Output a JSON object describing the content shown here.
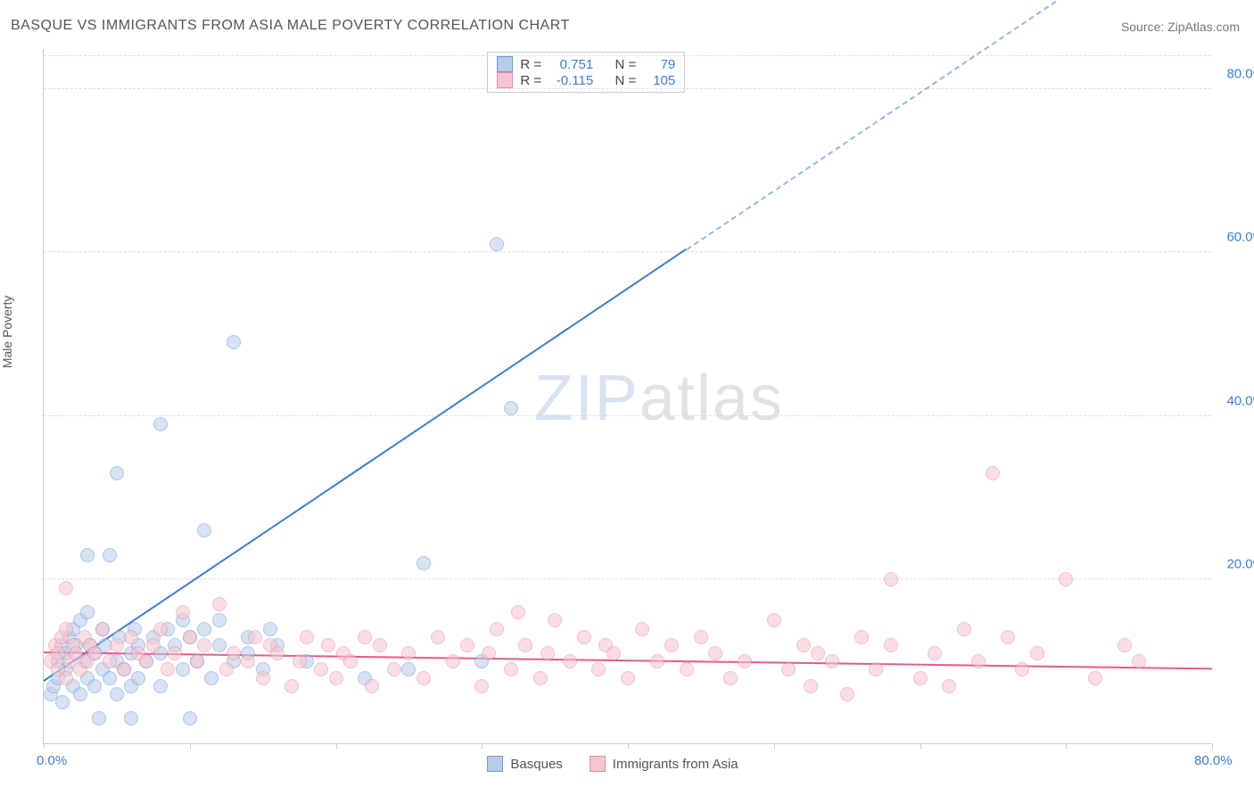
{
  "title": "BASQUE VS IMMIGRANTS FROM ASIA MALE POVERTY CORRELATION CHART",
  "source": "Source: ZipAtlas.com",
  "ylabel": "Male Poverty",
  "watermark": {
    "zip": "ZIP",
    "atlas": "atlas"
  },
  "chart": {
    "type": "scatter",
    "xlim": [
      0,
      80
    ],
    "ylim": [
      0,
      85
    ],
    "xticks": [
      0,
      10,
      20,
      30,
      40,
      50,
      60,
      70,
      80
    ],
    "xticklabels": {
      "0": "0.0%",
      "80": "80.0%"
    },
    "yticks": [
      20,
      40,
      60,
      80
    ],
    "grid_color": "#dddddd",
    "background": "#ffffff",
    "axis_color": "#cccccc",
    "tick_label_color": "#3b7dd8",
    "tick_fontsize": 15,
    "point_radius": 8,
    "point_opacity": 0.55,
    "series": [
      {
        "name": "Basques",
        "fill": "#b8cce8",
        "stroke": "#6a9bd8",
        "R": "0.751",
        "N": "79",
        "trend": {
          "slope": 1.2,
          "intercept": 7.5,
          "color": "#3b7dd8",
          "solid_until_x": 44,
          "width": 2
        },
        "points": [
          [
            0.5,
            6
          ],
          [
            0.7,
            7
          ],
          [
            1,
            8
          ],
          [
            1,
            10
          ],
          [
            1.2,
            12
          ],
          [
            1.3,
            5
          ],
          [
            1.5,
            9
          ],
          [
            1.5,
            11
          ],
          [
            1.8,
            13
          ],
          [
            2,
            7
          ],
          [
            2,
            14
          ],
          [
            2.2,
            12
          ],
          [
            2.5,
            6
          ],
          [
            2.5,
            15
          ],
          [
            2.8,
            10
          ],
          [
            3,
            8
          ],
          [
            3,
            16
          ],
          [
            3,
            23
          ],
          [
            3.2,
            12
          ],
          [
            3.5,
            7
          ],
          [
            3.5,
            11
          ],
          [
            3.8,
            3
          ],
          [
            4,
            9
          ],
          [
            4,
            14
          ],
          [
            4.2,
            12
          ],
          [
            4.5,
            23
          ],
          [
            4.5,
            8
          ],
          [
            5,
            10
          ],
          [
            5,
            6
          ],
          [
            5,
            33
          ],
          [
            5.2,
            13
          ],
          [
            5.5,
            9
          ],
          [
            6,
            7
          ],
          [
            6,
            11
          ],
          [
            6,
            3
          ],
          [
            6.2,
            14
          ],
          [
            6.5,
            8
          ],
          [
            6.5,
            12
          ],
          [
            7,
            10
          ],
          [
            7.5,
            13
          ],
          [
            8,
            11
          ],
          [
            8,
            7
          ],
          [
            8,
            39
          ],
          [
            8.5,
            14
          ],
          [
            9,
            12
          ],
          [
            9.5,
            9
          ],
          [
            9.5,
            15
          ],
          [
            10,
            13
          ],
          [
            10,
            3
          ],
          [
            10.5,
            10
          ],
          [
            11,
            14
          ],
          [
            11,
            26
          ],
          [
            11.5,
            8
          ],
          [
            12,
            15
          ],
          [
            12,
            12
          ],
          [
            13,
            49
          ],
          [
            13,
            10
          ],
          [
            14,
            13
          ],
          [
            14,
            11
          ],
          [
            15,
            9
          ],
          [
            15.5,
            14
          ],
          [
            16,
            12
          ],
          [
            18,
            10
          ],
          [
            22,
            8
          ],
          [
            25,
            9
          ],
          [
            26,
            22
          ],
          [
            30,
            10
          ],
          [
            31,
            61
          ],
          [
            32,
            41
          ]
        ]
      },
      {
        "name": "Immigrants from Asia",
        "fill": "#f5c6cf",
        "stroke": "#e88ba0",
        "R": "-0.115",
        "N": "105",
        "trend": {
          "slope": -0.025,
          "intercept": 11,
          "color": "#e65a8a",
          "solid_until_x": 80,
          "width": 2
        },
        "points": [
          [
            0.5,
            10
          ],
          [
            0.8,
            12
          ],
          [
            1,
            9
          ],
          [
            1,
            11
          ],
          [
            1.2,
            13
          ],
          [
            1.5,
            8
          ],
          [
            1.5,
            14
          ],
          [
            1.5,
            19
          ],
          [
            1.8,
            10
          ],
          [
            2,
            12
          ],
          [
            2.2,
            11
          ],
          [
            2.5,
            9
          ],
          [
            2.8,
            13
          ],
          [
            3,
            10
          ],
          [
            3.2,
            12
          ],
          [
            3.5,
            11
          ],
          [
            4,
            14
          ],
          [
            4.5,
            10
          ],
          [
            5,
            12
          ],
          [
            5.5,
            9
          ],
          [
            6,
            13
          ],
          [
            6.5,
            11
          ],
          [
            7,
            10
          ],
          [
            7.5,
            12
          ],
          [
            8,
            14
          ],
          [
            8.5,
            9
          ],
          [
            9,
            11
          ],
          [
            9.5,
            16
          ],
          [
            10,
            13
          ],
          [
            10.5,
            10
          ],
          [
            11,
            12
          ],
          [
            12,
            17
          ],
          [
            12.5,
            9
          ],
          [
            13,
            11
          ],
          [
            14,
            10
          ],
          [
            14.5,
            13
          ],
          [
            15,
            8
          ],
          [
            15.5,
            12
          ],
          [
            16,
            11
          ],
          [
            17,
            7
          ],
          [
            17.5,
            10
          ],
          [
            18,
            13
          ],
          [
            19,
            9
          ],
          [
            19.5,
            12
          ],
          [
            20,
            8
          ],
          [
            20.5,
            11
          ],
          [
            21,
            10
          ],
          [
            22,
            13
          ],
          [
            22.5,
            7
          ],
          [
            23,
            12
          ],
          [
            24,
            9
          ],
          [
            25,
            11
          ],
          [
            26,
            8
          ],
          [
            27,
            13
          ],
          [
            28,
            10
          ],
          [
            29,
            12
          ],
          [
            30,
            7
          ],
          [
            30.5,
            11
          ],
          [
            31,
            14
          ],
          [
            32,
            9
          ],
          [
            32.5,
            16
          ],
          [
            33,
            12
          ],
          [
            34,
            8
          ],
          [
            34.5,
            11
          ],
          [
            35,
            15
          ],
          [
            36,
            10
          ],
          [
            37,
            13
          ],
          [
            38,
            9
          ],
          [
            38.5,
            12
          ],
          [
            39,
            11
          ],
          [
            40,
            8
          ],
          [
            41,
            14
          ],
          [
            42,
            10
          ],
          [
            43,
            12
          ],
          [
            44,
            9
          ],
          [
            45,
            13
          ],
          [
            46,
            11
          ],
          [
            47,
            8
          ],
          [
            48,
            10
          ],
          [
            50,
            15
          ],
          [
            51,
            9
          ],
          [
            52,
            12
          ],
          [
            52.5,
            7
          ],
          [
            53,
            11
          ],
          [
            54,
            10
          ],
          [
            55,
            6
          ],
          [
            56,
            13
          ],
          [
            57,
            9
          ],
          [
            58,
            12
          ],
          [
            58,
            20
          ],
          [
            60,
            8
          ],
          [
            61,
            11
          ],
          [
            62,
            7
          ],
          [
            63,
            14
          ],
          [
            64,
            10
          ],
          [
            65,
            33
          ],
          [
            66,
            13
          ],
          [
            67,
            9
          ],
          [
            68,
            11
          ],
          [
            70,
            20
          ],
          [
            72,
            8
          ],
          [
            74,
            12
          ],
          [
            75,
            10
          ]
        ]
      }
    ]
  },
  "legend_top": {
    "rows": [
      {
        "swatch_fill": "#b8cce8",
        "swatch_stroke": "#6a9bd8",
        "r_label": "R =",
        "r_val": "0.751",
        "n_label": "N =",
        "n_val": "79"
      },
      {
        "swatch_fill": "#f5c6cf",
        "swatch_stroke": "#e88ba0",
        "r_label": "R =",
        "r_val": "-0.115",
        "n_label": "N =",
        "n_val": "105"
      }
    ]
  },
  "legend_bottom": [
    {
      "swatch_fill": "#b8cce8",
      "swatch_stroke": "#6a9bd8",
      "label": "Basques"
    },
    {
      "swatch_fill": "#f5c6cf",
      "swatch_stroke": "#e88ba0",
      "label": "Immigrants from Asia"
    }
  ]
}
